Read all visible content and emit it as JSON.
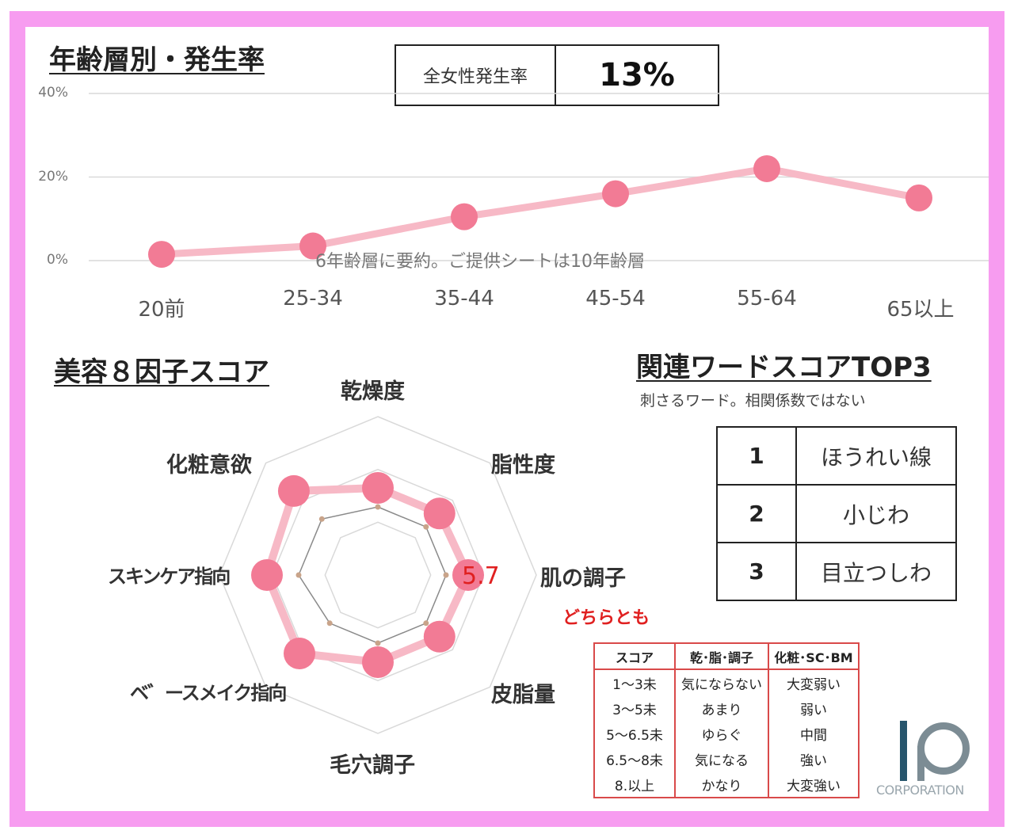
{
  "section1_title": "年齢層別・発生率",
  "kpi": {
    "label": "全女性発生率",
    "value": "13%"
  },
  "chart_note": "6年齢層に要約。ご提供シートは10年齢層",
  "section2_title": "美容８因子スコア",
  "section3_title": "関連ワードスコアTOP3",
  "section3_subtitle": "刺さるワード。相関係数ではない",
  "top3": [
    {
      "rank": "1",
      "word": "ほうれい線"
    },
    {
      "rank": "2",
      "word": "小じわ"
    },
    {
      "rank": "3",
      "word": "目立つしわ"
    }
  ],
  "legend": {
    "caption": "どちらとも",
    "headers": [
      "スコア",
      "乾･脂･調子",
      "化粧･SC･BM"
    ],
    "rows": [
      [
        "1～3未",
        "気にならない",
        "大変弱い"
      ],
      [
        "3～5未",
        "あまり",
        "弱い"
      ],
      [
        "5～6.5未",
        "ゆらぐ",
        "中間"
      ],
      [
        "6.5～8未",
        "気になる",
        "強い"
      ],
      [
        "8.以上",
        "かなり",
        "大変強い"
      ]
    ]
  },
  "logo": {
    "text": "CORPORATION"
  },
  "colors": {
    "frame": "#f79cf0",
    "line": "#f7b9c6",
    "marker": "#f27b95",
    "legend_border": "#d94a4a",
    "caption": "#e02020"
  },
  "chart_data": [
    {
      "type": "line",
      "title": "年齢層別・発生率",
      "categories": [
        "20前",
        "25-34",
        "35-44",
        "45-54",
        "55-64",
        "65以上"
      ],
      "series": [
        {
          "values": [
            1.5,
            3.5,
            10.5,
            16,
            22,
            15
          ]
        }
      ],
      "yticks": [
        "0%",
        "20%",
        "40%"
      ],
      "ylim": [
        0,
        40
      ],
      "grid": true
    },
    {
      "type": "radar",
      "title": "美容８因子スコア",
      "axes": [
        "乾燥度",
        "脂性度",
        "肌の調子",
        "皮脂量",
        "毛穴調子",
        "ベ゛ースメイク指向",
        "スキンケア指向",
        "化粧意欲"
      ],
      "range": [
        0,
        10
      ],
      "rings": 3,
      "series": [
        {
          "values": [
            5.5,
            5.5,
            5.7,
            5.5,
            5.5,
            7.0,
            7.0,
            7.5
          ]
        },
        {
          "values": [
            4.3,
            4.3,
            4.3,
            4.3,
            4.3,
            4.3,
            5.0,
            5.0
          ]
        }
      ],
      "value_label": "5.7"
    }
  ]
}
